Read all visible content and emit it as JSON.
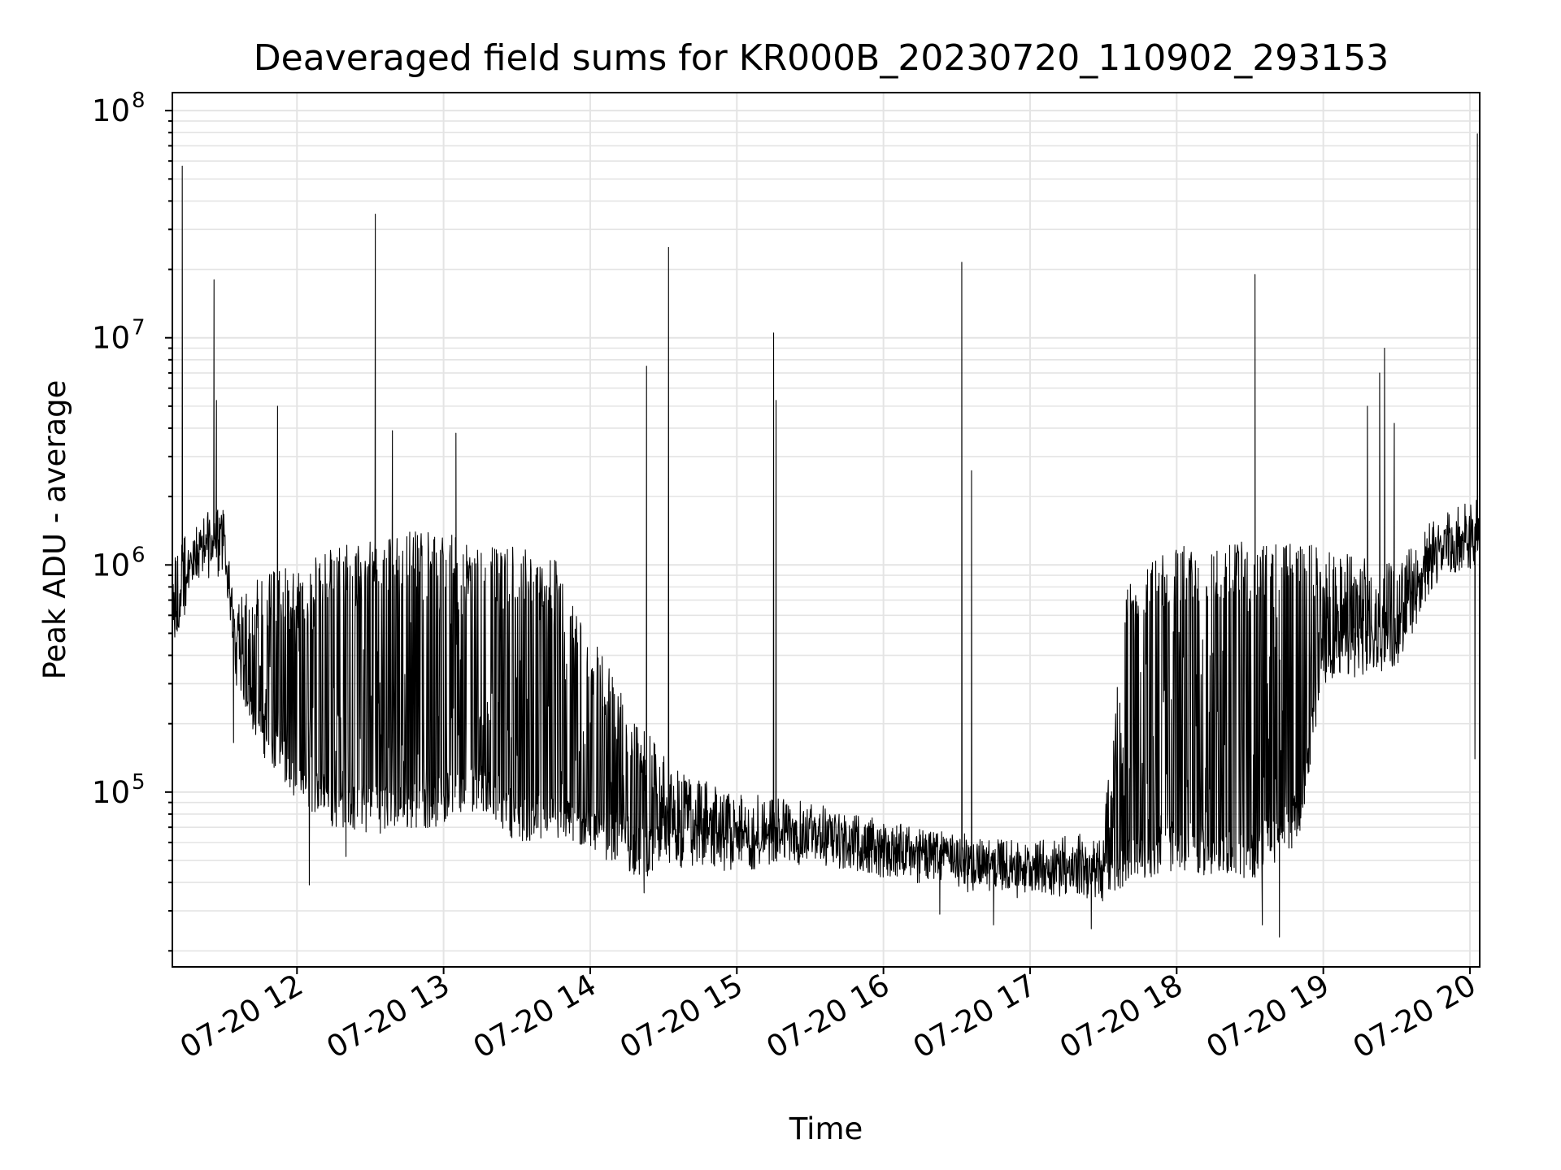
{
  "chart_data": {
    "type": "line",
    "title": "Deaveraged field sums for KR000B_20230720_110902_293153",
    "xlabel": "Time",
    "ylabel": "Peak ADU - average",
    "yscale": "log",
    "ylim": [
      17000,
      120000000
    ],
    "xlim": [
      "2023-07-20 11:09",
      "2023-07-20 20:04"
    ],
    "grid": true,
    "x_tick_labels": [
      "07-20 12",
      "07-20 13",
      "07-20 14",
      "07-20 15",
      "07-20 16",
      "07-20 17",
      "07-20 18",
      "07-20 19",
      "07-20 20"
    ],
    "x_tick_times": [
      "2023-07-20 12:00",
      "2023-07-20 13:00",
      "2023-07-20 14:00",
      "2023-07-20 15:00",
      "2023-07-20 16:00",
      "2023-07-20 17:00",
      "2023-07-20 18:00",
      "2023-07-20 19:00",
      "2023-07-20 20:00"
    ],
    "y_ticks": [
      {
        "value": 100000,
        "base": "10",
        "exp": "5"
      },
      {
        "value": 1000000,
        "base": "10",
        "exp": "6"
      },
      {
        "value": 10000000,
        "base": "10",
        "exp": "7"
      },
      {
        "value": 100000000,
        "base": "10",
        "exp": "8"
      }
    ],
    "series": [
      {
        "color": "#000000",
        "envelope": [
          [
            "2023-07-20 11:09",
            1200000,
            350000
          ],
          [
            "2023-07-20 11:20",
            1500000,
            1000000
          ],
          [
            "2023-07-20 11:30",
            1600000,
            1100000
          ],
          [
            "2023-07-20 11:35",
            700000,
            300000
          ],
          [
            "2023-07-20 11:45",
            900000,
            150000
          ],
          [
            "2023-07-20 12:00",
            1000000,
            90000
          ],
          [
            "2023-07-20 12:15",
            1200000,
            70000
          ],
          [
            "2023-07-20 12:30",
            1300000,
            65000
          ],
          [
            "2023-07-20 12:45",
            1400000,
            68000
          ],
          [
            "2023-07-20 13:00",
            1400000,
            70000
          ],
          [
            "2023-07-20 13:15",
            1200000,
            85000
          ],
          [
            "2023-07-20 13:30",
            1200000,
            60000
          ],
          [
            "2023-07-20 13:45",
            1100000,
            60000
          ],
          [
            "2023-07-20 14:00",
            500000,
            55000
          ],
          [
            "2023-07-20 14:20",
            200000,
            42000
          ],
          [
            "2023-07-20 14:40",
            120000,
            45000
          ],
          [
            "2023-07-20 15:00",
            100000,
            45000
          ],
          [
            "2023-07-20 15:30",
            90000,
            48000
          ],
          [
            "2023-07-20 16:00",
            75000,
            42000
          ],
          [
            "2023-07-20 16:30",
            65000,
            40000
          ],
          [
            "2023-07-20 17:00",
            60000,
            36000
          ],
          [
            "2023-07-20 17:30",
            70000,
            33000
          ],
          [
            "2023-07-20 17:40",
            1000000,
            40000
          ],
          [
            "2023-07-20 18:00",
            1200000,
            45000
          ],
          [
            "2023-07-20 18:30",
            1300000,
            40000
          ],
          [
            "2023-07-20 18:50",
            1300000,
            60000
          ],
          [
            "2023-07-20 19:00",
            1200000,
            300000
          ],
          [
            "2023-07-20 19:30",
            1000000,
            350000
          ],
          [
            "2023-07-20 19:45",
            1600000,
            800000
          ],
          [
            "2023-07-20 20:04",
            2000000,
            1000000
          ]
        ],
        "spikes": [
          [
            "2023-07-20 11:13",
            57000000
          ],
          [
            "2023-07-20 11:26",
            18000000
          ],
          [
            "2023-07-20 11:27",
            5300000
          ],
          [
            "2023-07-20 11:52",
            5000000
          ],
          [
            "2023-07-20 12:32",
            35000000
          ],
          [
            "2023-07-20 12:39",
            3900000
          ],
          [
            "2023-07-20 13:05",
            3800000
          ],
          [
            "2023-07-20 14:23",
            7500000
          ],
          [
            "2023-07-20 14:32",
            25000000
          ],
          [
            "2023-07-20 15:15",
            10500000
          ],
          [
            "2023-07-20 15:16",
            5300000
          ],
          [
            "2023-07-20 16:32",
            21500000
          ],
          [
            "2023-07-20 16:36",
            2600000
          ],
          [
            "2023-07-20 18:32",
            19000000
          ],
          [
            "2023-07-20 19:18",
            5000000
          ],
          [
            "2023-07-20 19:23",
            7000000
          ],
          [
            "2023-07-20 19:25",
            9000000
          ],
          [
            "2023-07-20 19:29",
            4200000
          ],
          [
            "2023-07-20 20:03",
            79000000
          ]
        ],
        "dips": [
          [
            "2023-07-20 11:34",
            165000
          ],
          [
            "2023-07-20 12:05",
            39000
          ],
          [
            "2023-07-20 12:20",
            52000
          ],
          [
            "2023-07-20 14:22",
            36000
          ],
          [
            "2023-07-20 16:23",
            29000
          ],
          [
            "2023-07-20 16:45",
            26000
          ],
          [
            "2023-07-20 17:25",
            25000
          ],
          [
            "2023-07-20 18:35",
            26000
          ],
          [
            "2023-07-20 18:42",
            23000
          ],
          [
            "2023-07-20 20:02",
            140000
          ]
        ]
      }
    ]
  }
}
